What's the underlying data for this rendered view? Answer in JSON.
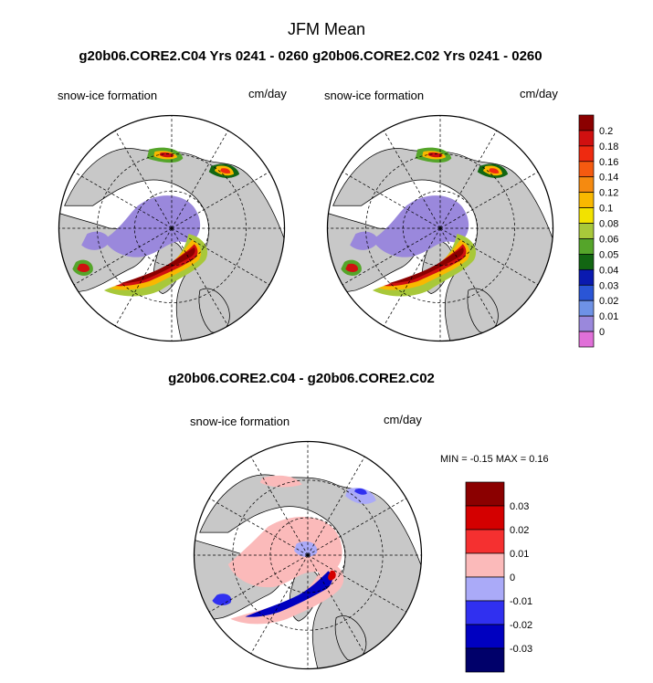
{
  "figure": {
    "title": "JFM Mean",
    "top_header": "g20b06.CORE2.C04  Yrs 0241 - 0260 g20b06.CORE2.C02  Yrs 0241 - 0260",
    "diff_header": "g20b06.CORE2.C04 - g20b06.CORE2.C02"
  },
  "panels": [
    {
      "id": "c04",
      "field_label": "snow-ice formation",
      "units": "cm/day"
    },
    {
      "id": "c02",
      "field_label": "snow-ice formation",
      "units": "cm/day"
    },
    {
      "id": "diff",
      "field_label": "snow-ice formation",
      "units": "cm/day",
      "min_max_text": "MIN =  -0.15 MAX =   0.16"
    }
  ],
  "colorbar_main": {
    "labels": [
      "0.2",
      "0.18",
      "0.16",
      "0.14",
      "0.12",
      "0.1",
      "0.08",
      "0.06",
      "0.05",
      "0.04",
      "0.03",
      "0.02",
      "0.01",
      "0"
    ],
    "colors": [
      "#8b0000",
      "#d01010",
      "#ee2a10",
      "#f55a10",
      "#f58a10",
      "#f9b800",
      "#f2e200",
      "#a8c83a",
      "#55a52a",
      "#126612",
      "#0a1ab0",
      "#2a55d6",
      "#6e92e6",
      "#9a88dc",
      "#e070d8"
    ]
  },
  "colorbar_diff": {
    "labels": [
      "0.03",
      "0.02",
      "0.01",
      "0",
      "-0.01",
      "-0.02",
      "-0.03"
    ],
    "colors": [
      "#8b0000",
      "#d40000",
      "#f53030",
      "#fbbaba",
      "#aaaaf8",
      "#3030f0",
      "#0000c0",
      "#00006a"
    ]
  },
  "map_colors": {
    "land": "#c8c8c8",
    "ocean": "#ffffff",
    "low_ice": "#9a88dc",
    "diff_pos": "#fbbaba",
    "diff_neg": "#aaaaf8"
  }
}
